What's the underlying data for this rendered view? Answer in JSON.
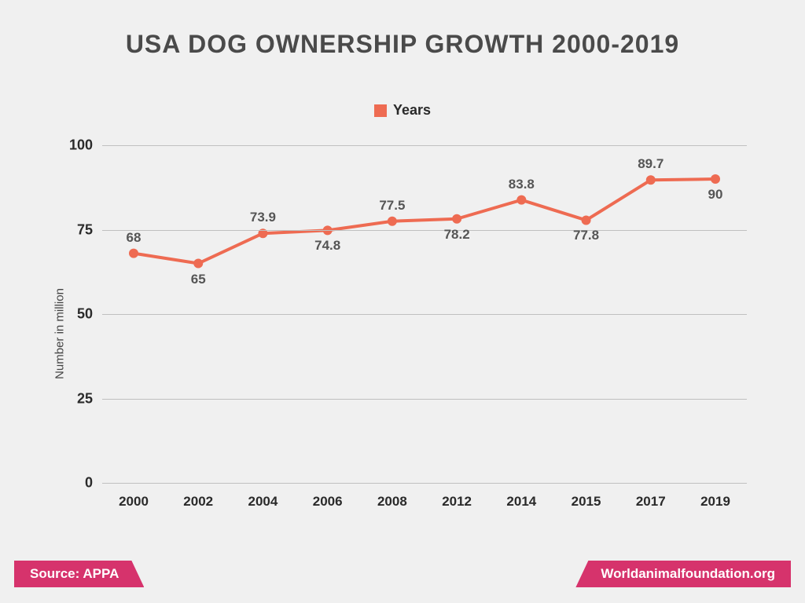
{
  "title": "USA DOG OWNERSHIP GROWTH 2000-2019",
  "legend_label": "Years",
  "y_axis_label": "Number in million",
  "chart": {
    "type": "line",
    "categories": [
      "2000",
      "2002",
      "2004",
      "2006",
      "2008",
      "2012",
      "2014",
      "2015",
      "2017",
      "2019"
    ],
    "values": [
      68,
      65,
      73.9,
      74.8,
      77.5,
      78.2,
      83.8,
      77.8,
      89.7,
      90
    ],
    "value_labels": [
      "68",
      "65",
      "73.9",
      "74.8",
      "77.5",
      "78.2",
      "83.8",
      "77.8",
      "89.7",
      "90"
    ],
    "label_positions": [
      "above",
      "below",
      "above",
      "below",
      "above",
      "below",
      "above",
      "below",
      "above",
      "below"
    ],
    "ylim": [
      0,
      100
    ],
    "yticks": [
      0,
      25,
      50,
      75,
      100
    ],
    "line_color": "#ee6b52",
    "marker_color": "#ee6b52",
    "line_width": 4,
    "marker_radius": 6,
    "grid_color": "#c0c0c0",
    "background_color": "#f0f0f0",
    "title_color": "#4a4a4a",
    "tick_fontsize": 18,
    "label_fontsize": 17,
    "title_fontsize": 32,
    "plot_left_pad": 40,
    "plot_right_pad": 40
  },
  "footer": {
    "source_label": "Source: APPA",
    "site_label": "Worldanimalfoundation.org",
    "bar_color": "#d6336c"
  }
}
